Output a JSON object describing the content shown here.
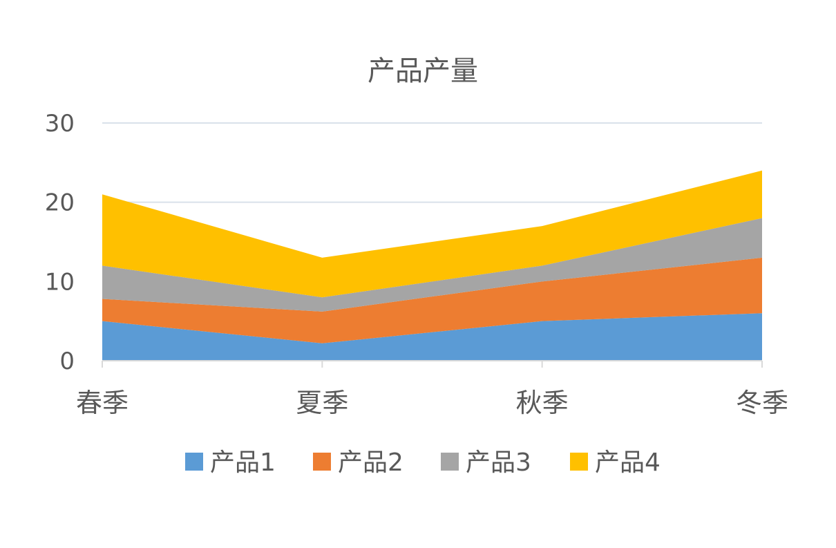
{
  "chart_data": {
    "type": "area",
    "stacked": true,
    "title": "产品产量",
    "categories": [
      "春季",
      "夏季",
      "秋季",
      "冬季"
    ],
    "series": [
      {
        "name": "产品1",
        "values": [
          5,
          2.2,
          5,
          6
        ],
        "color": "#5B9BD5"
      },
      {
        "name": "产品2",
        "values": [
          2.8,
          4,
          5,
          7
        ],
        "color": "#ED7D31"
      },
      {
        "name": "产品3",
        "values": [
          4.2,
          1.8,
          2,
          5
        ],
        "color": "#A5A5A5"
      },
      {
        "name": "产品4",
        "values": [
          9,
          5,
          5,
          6
        ],
        "color": "#FFC000"
      }
    ],
    "ylim": [
      0,
      30
    ],
    "yticks": [
      "0",
      "10",
      "20",
      "30"
    ],
    "grid": true,
    "legend_position": "bottom"
  }
}
